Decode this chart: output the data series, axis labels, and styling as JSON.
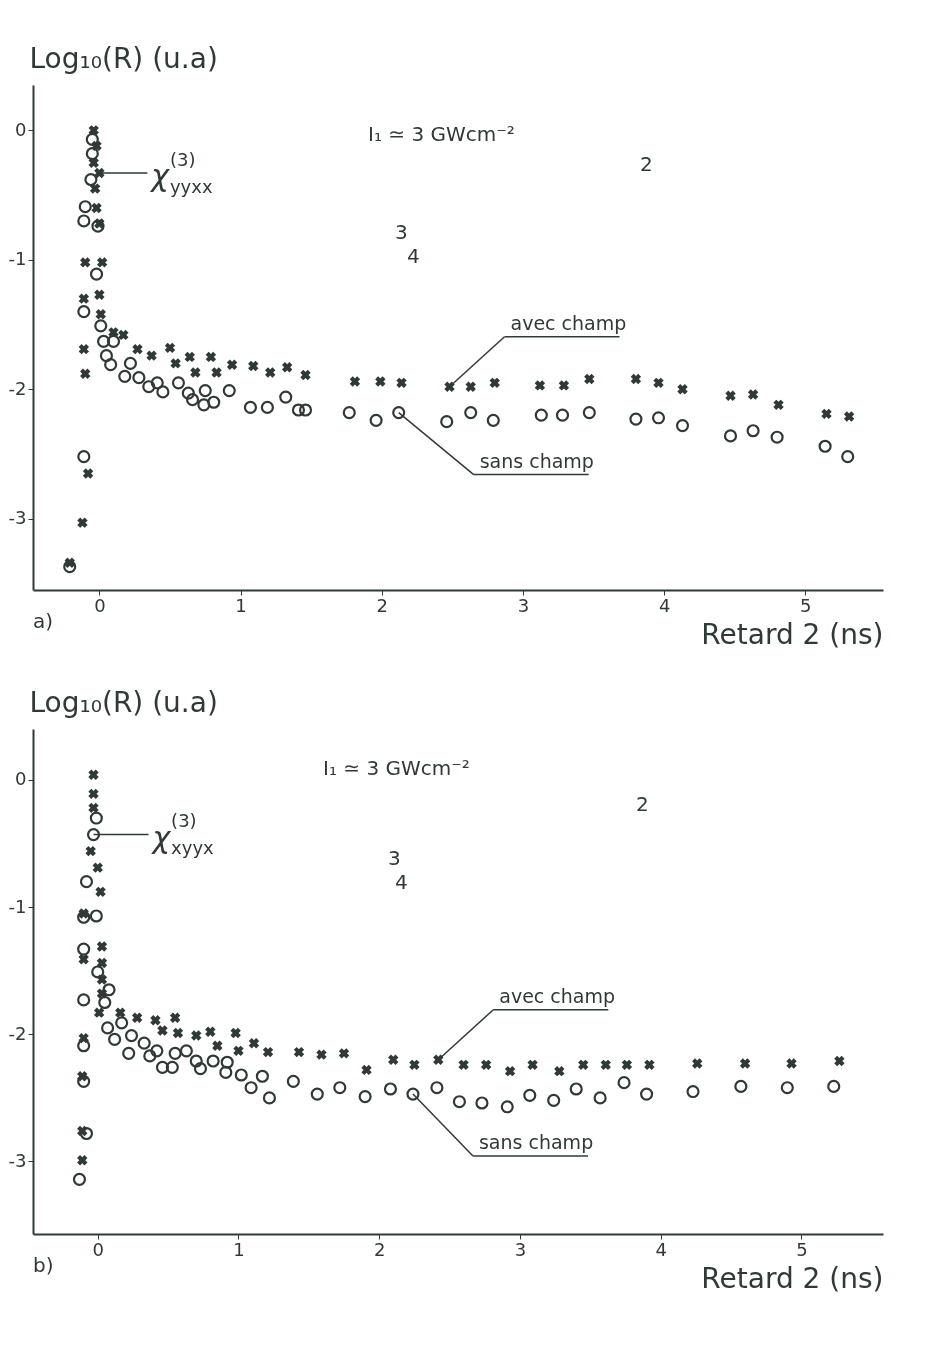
{
  "chart_data": [
    {
      "type": "scatter",
      "xlabel": "Retard 2 (ns)",
      "ylabel": "Log₁₀(R) (u.a)",
      "xlim": [
        -0.47,
        5.55
      ],
      "ylim": [
        -3.55,
        0.35
      ],
      "xticks": [
        0,
        1,
        2,
        3,
        4,
        5
      ],
      "yticks": [
        0,
        -1,
        -2,
        -3
      ],
      "annotations": [
        "a)",
        {
          "text": "χ$^{(3)}$$_{yyxx}$",
          "x": 0.0,
          "y": -0.33
        },
        "I₁ ≃ 3 GWcm⁻²",
        "2",
        "3",
        "4"
      ],
      "series": [
        {
          "name": "avec champ",
          "color": "#2f3a36",
          "marker": "cross",
          "x": [
            -0.04,
            -0.02,
            -0.04,
            0.0,
            -0.03,
            -0.02,
            0.0,
            -0.1,
            0.02,
            0.0,
            -0.11,
            0.01,
            -0.11,
            -0.1,
            -0.08,
            -0.12,
            -0.21,
            0.1,
            0.17,
            0.27,
            0.37,
            0.5,
            0.54,
            0.64,
            0.68,
            0.79,
            0.83,
            0.94,
            1.09,
            1.21,
            1.33,
            1.46,
            1.81,
            1.99,
            2.14,
            2.48,
            2.63,
            2.8,
            3.12,
            3.29,
            3.47,
            3.8,
            3.96,
            4.13,
            4.47,
            4.63,
            4.81,
            5.15,
            5.31
          ],
          "values": [
            0,
            -0.12,
            -0.25,
            -0.33,
            -0.45,
            -0.6,
            -0.72,
            -1.02,
            -1.02,
            -1.27,
            -1.3,
            -1.42,
            -1.69,
            -1.88,
            -2.65,
            -3.03,
            -3.34,
            -1.56,
            -1.58,
            -1.69,
            -1.74,
            -1.68,
            -1.8,
            -1.75,
            -1.87,
            -1.75,
            -1.87,
            -1.81,
            -1.82,
            -1.87,
            -1.83,
            -1.89,
            -1.94,
            -1.94,
            -1.95,
            -1.98,
            -1.98,
            -1.95,
            -1.97,
            -1.97,
            -1.92,
            -1.92,
            -1.95,
            -2.0,
            -2.05,
            -2.04,
            -2.12,
            -2.19,
            -2.21
          ]
        },
        {
          "name": "sans champ",
          "color": "#2f3a36",
          "marker": "circle",
          "x": [
            -0.05,
            -0.05,
            -0.06,
            -0.1,
            -0.11,
            -0.01,
            -0.02,
            -0.11,
            -0.11,
            -0.21,
            0.01,
            0.03,
            0.05,
            0.1,
            0.08,
            0.22,
            0.18,
            0.28,
            0.35,
            0.41,
            0.45,
            0.56,
            0.63,
            0.66,
            0.74,
            0.75,
            0.81,
            0.92,
            1.07,
            1.19,
            1.32,
            1.41,
            1.46,
            1.77,
            1.96,
            2.12,
            2.46,
            2.63,
            2.79,
            3.13,
            3.28,
            3.47,
            3.8,
            3.96,
            4.13,
            4.47,
            4.63,
            4.8,
            5.14,
            5.3
          ],
          "values": [
            -0.07,
            -0.18,
            -0.38,
            -0.59,
            -0.7,
            -0.74,
            -1.11,
            -1.4,
            -2.52,
            -3.37,
            -1.51,
            -1.63,
            -1.74,
            -1.63,
            -1.81,
            -1.8,
            -1.9,
            -1.91,
            -1.98,
            -1.95,
            -2.02,
            -1.95,
            -2.03,
            -2.08,
            -2.12,
            -2.01,
            -2.1,
            -2.01,
            -2.14,
            -2.14,
            -2.06,
            -2.16,
            -2.16,
            -2.18,
            -2.24,
            -2.18,
            -2.25,
            -2.18,
            -2.24,
            -2.2,
            -2.2,
            -2.18,
            -2.23,
            -2.22,
            -2.28,
            -2.36,
            -2.32,
            -2.37,
            -2.44,
            -2.52
          ]
        }
      ]
    },
    {
      "type": "scatter",
      "xlabel": "Retard 2 (ns)",
      "ylabel": "Log₁₀(R) (u.a)",
      "xlim": [
        -0.46,
        5.58
      ],
      "ylim": [
        -3.57,
        0.4
      ],
      "xticks": [
        0,
        1,
        2,
        3,
        4,
        5
      ],
      "yticks": [
        0,
        -1,
        -2,
        -3
      ],
      "annotations": [
        "b)",
        {
          "text": "χ$^{(3)}$$_{xyyx}$",
          "x": -0.03,
          "y": -0.43
        },
        "I₁ ≃ 3 GWcm⁻²",
        "2",
        "3",
        "4"
      ],
      "series": [
        {
          "name": "avec champ",
          "color": "#2f3a36",
          "marker": "cross",
          "x": [
            -0.03,
            -0.03,
            -0.03,
            -0.05,
            0.0,
            0.02,
            -0.1,
            0.03,
            -0.1,
            0.03,
            0.03,
            0.03,
            0.01,
            -0.1,
            -0.11,
            -0.11,
            -0.11,
            0.16,
            0.28,
            0.41,
            0.55,
            0.46,
            0.57,
            0.7,
            0.8,
            0.85,
            0.98,
            1.0,
            1.11,
            1.21,
            1.43,
            1.59,
            1.75,
            1.91,
            2.1,
            2.25,
            2.42,
            2.6,
            2.76,
            2.93,
            3.09,
            3.28,
            3.45,
            3.61,
            3.76,
            3.92,
            4.26,
            4.6,
            4.93,
            5.27
          ],
          "values": [
            0.04,
            -0.11,
            -0.22,
            -0.56,
            -0.69,
            -0.88,
            -1.05,
            -1.31,
            -1.41,
            -1.44,
            -1.57,
            -1.68,
            -1.83,
            -2.03,
            -2.33,
            -2.76,
            -2.99,
            -1.83,
            -1.87,
            -1.89,
            -1.87,
            -1.97,
            -1.99,
            -2.01,
            -1.98,
            -2.09,
            -1.99,
            -2.13,
            -2.07,
            -2.14,
            -2.14,
            -2.16,
            -2.15,
            -2.28,
            -2.2,
            -2.24,
            -2.2,
            -2.24,
            -2.24,
            -2.29,
            -2.24,
            -2.29,
            -2.24,
            -2.24,
            -2.24,
            -2.24,
            -2.23,
            -2.23,
            -2.23,
            -2.21
          ]
        },
        {
          "name": "sans champ",
          "color": "#2f3a36",
          "marker": "circle",
          "x": [
            -0.01,
            -0.03,
            -0.08,
            -0.01,
            -0.1,
            -0.1,
            -0.1,
            -0.1,
            -0.1,
            -0.08,
            -0.13,
            0.0,
            0.08,
            0.05,
            0.07,
            0.12,
            0.17,
            0.22,
            0.24,
            0.33,
            0.37,
            0.42,
            0.46,
            0.53,
            0.55,
            0.63,
            0.7,
            0.73,
            0.82,
            0.91,
            0.92,
            1.02,
            1.09,
            1.17,
            1.22,
            1.39,
            1.56,
            1.72,
            1.9,
            2.08,
            2.24,
            2.41,
            2.57,
            2.73,
            2.91,
            3.07,
            3.24,
            3.4,
            3.57,
            3.74,
            3.9,
            4.23,
            4.57,
            4.9,
            5.23
          ],
          "values": [
            -0.3,
            -0.43,
            -0.8,
            -1.07,
            -1.08,
            -1.33,
            -1.73,
            -2.09,
            -2.37,
            -2.78,
            -3.14,
            -1.51,
            -1.65,
            -1.75,
            -1.95,
            -2.04,
            -1.91,
            -2.15,
            -2.01,
            -2.07,
            -2.17,
            -2.13,
            -2.26,
            -2.26,
            -2.15,
            -2.13,
            -2.21,
            -2.27,
            -2.21,
            -2.3,
            -2.22,
            -2.32,
            -2.42,
            -2.33,
            -2.5,
            -2.37,
            -2.47,
            -2.42,
            -2.49,
            -2.43,
            -2.47,
            -2.42,
            -2.53,
            -2.54,
            -2.57,
            -2.48,
            -2.52,
            -2.43,
            -2.5,
            -2.38,
            -2.47,
            -2.45,
            -2.41,
            -2.42,
            -2.41
          ]
        }
      ]
    }
  ]
}
